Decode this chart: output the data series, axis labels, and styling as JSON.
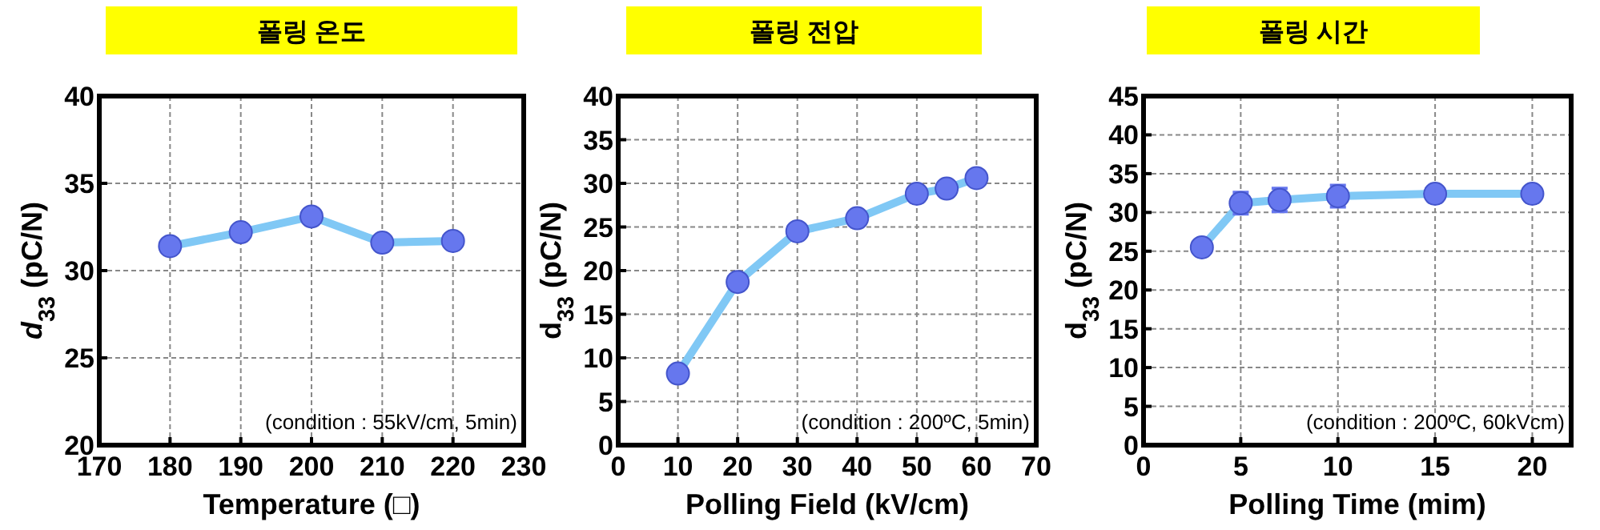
{
  "chart_data": [
    {
      "type": "line",
      "title": "폴링 온도",
      "xlabel": "Temperature (□)",
      "ylabel": "*d*$_{33}$ (pC/N)",
      "x": [
        180,
        190,
        200,
        210,
        220
      ],
      "values": [
        31.4,
        32.2,
        33.1,
        31.6,
        31.7
      ],
      "color": "#6677ee",
      "xlim": [
        170,
        230
      ],
      "ylim": [
        20,
        40
      ],
      "xticks": [
        170,
        180,
        190,
        200,
        210,
        220,
        230
      ],
      "yticks": [
        20,
        25,
        30,
        35,
        40
      ],
      "grid": true,
      "marker": "circle",
      "annotations": [
        "(condition : 55kV/cm, 5min)"
      ]
    },
    {
      "type": "line",
      "title": "폴링 전압",
      "xlabel": "Polling Field (kV/cm)",
      "ylabel": "d$_{33}$ (pC/N)",
      "x": [
        10,
        20,
        30,
        40,
        50,
        55,
        60
      ],
      "values": [
        8.2,
        18.7,
        24.5,
        26.0,
        28.8,
        29.4,
        30.6
      ],
      "color": "#6677ee",
      "xlim": [
        0,
        70
      ],
      "ylim": [
        0,
        40
      ],
      "xticks": [
        0,
        10,
        20,
        30,
        40,
        50,
        60,
        70
      ],
      "yticks": [
        0,
        5,
        10,
        15,
        20,
        25,
        30,
        35,
        40
      ],
      "grid": true,
      "marker": "circle",
      "annotations": [
        "(condition : 200ºC, 5min)"
      ]
    },
    {
      "type": "line",
      "title": "폴링 시간",
      "xlabel": "Polling Time (mim)",
      "ylabel": "d$_{33}$ (pC/N)",
      "x": [
        3,
        5,
        7,
        10,
        15,
        20
      ],
      "values": [
        25.5,
        31.2,
        31.6,
        32.1,
        32.4,
        32.4
      ],
      "errors": [
        null,
        1.4,
        1.5,
        1.4,
        null,
        null
      ],
      "color": "#6677ee",
      "xlim": [
        0,
        22
      ],
      "ylim": [
        0,
        45
      ],
      "xticks": [
        0,
        5,
        10,
        15,
        20
      ],
      "yticks": [
        0,
        5,
        10,
        15,
        20,
        25,
        30,
        35,
        40,
        45
      ],
      "grid": true,
      "marker": "circle",
      "annotations": [
        "(condition : 200ºC, 60kVcm)"
      ]
    }
  ]
}
